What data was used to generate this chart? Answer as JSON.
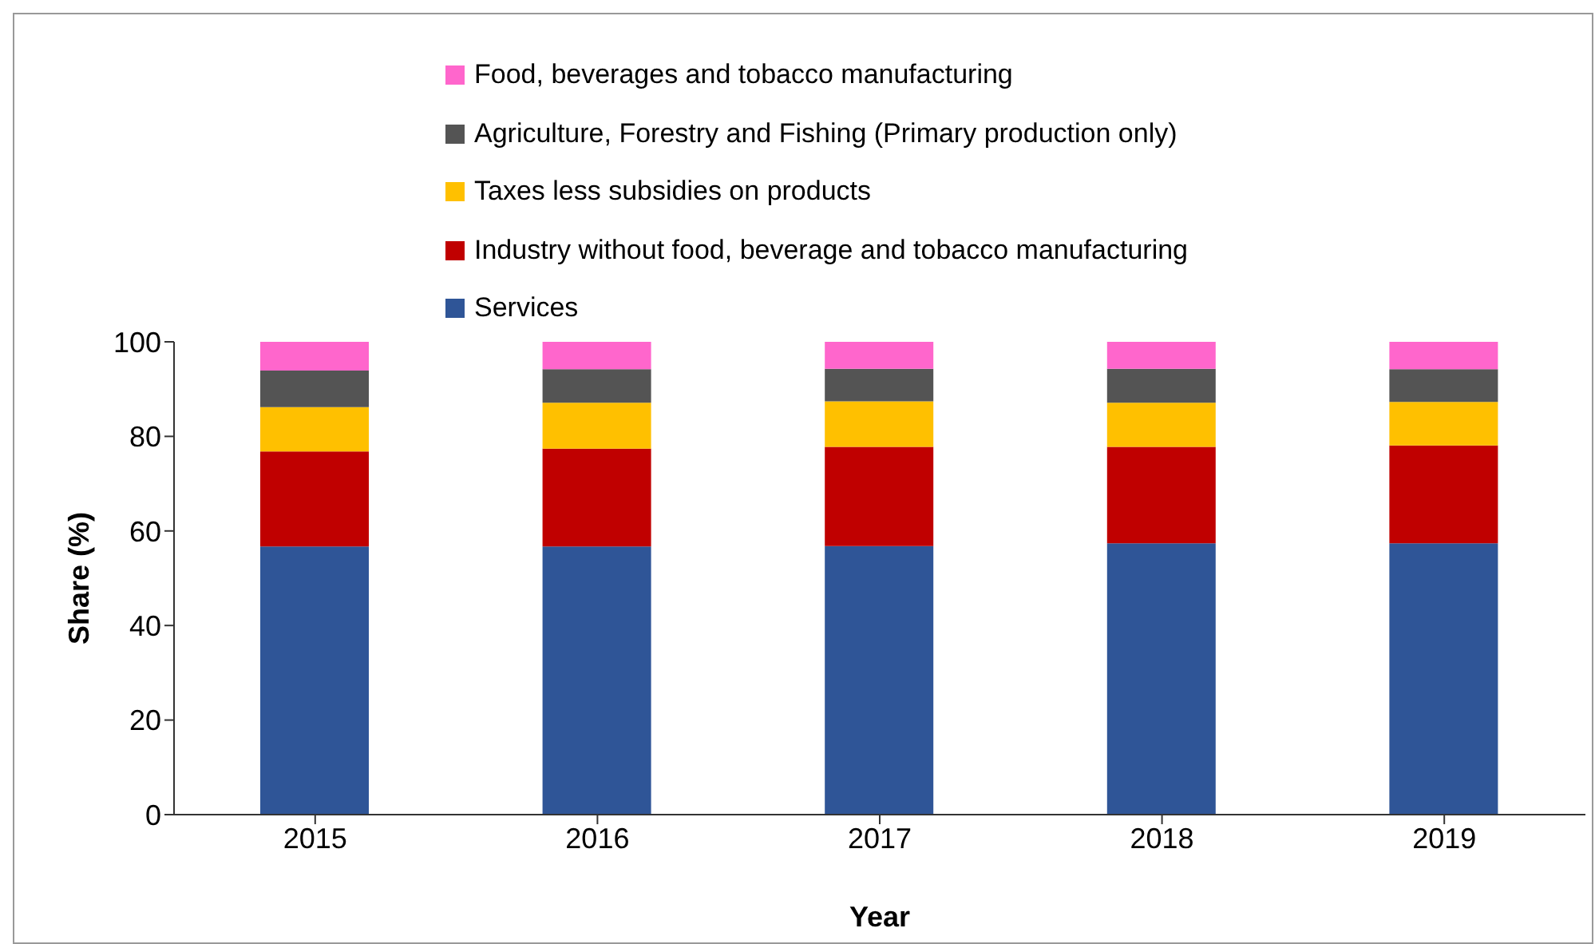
{
  "chart_data": {
    "type": "bar",
    "stacked": true,
    "xlabel": "Year",
    "ylabel": "Share (%)",
    "categories": [
      "2015",
      "2016",
      "2017",
      "2018",
      "2019"
    ],
    "series": [
      {
        "name": "Services",
        "color": "#2f5597",
        "values": [
          56.7,
          56.7,
          56.8,
          57.4,
          57.4
        ]
      },
      {
        "name": "Industry without food, beverage and tobacco manufacturing",
        "color": "#c00000",
        "values": [
          20.1,
          20.7,
          21.0,
          20.4,
          20.7
        ]
      },
      {
        "name": "Taxes less subsidies on products",
        "color": "#ffc000",
        "values": [
          9.4,
          9.7,
          9.6,
          9.3,
          9.2
        ]
      },
      {
        "name": "Agriculture, Forestry and Fishing (Primary production only)",
        "color": "#545454",
        "values": [
          7.7,
          7.1,
          6.9,
          7.2,
          6.9
        ]
      },
      {
        "name": "Food, beverages and tobacco manufacturing",
        "color": "#ff66cc",
        "values": [
          6.1,
          5.8,
          5.7,
          5.7,
          5.8
        ]
      }
    ],
    "ylim": [
      0,
      100
    ],
    "yticks": [
      0,
      20,
      40,
      60,
      80,
      100
    ],
    "grid": false,
    "legend": "top"
  }
}
